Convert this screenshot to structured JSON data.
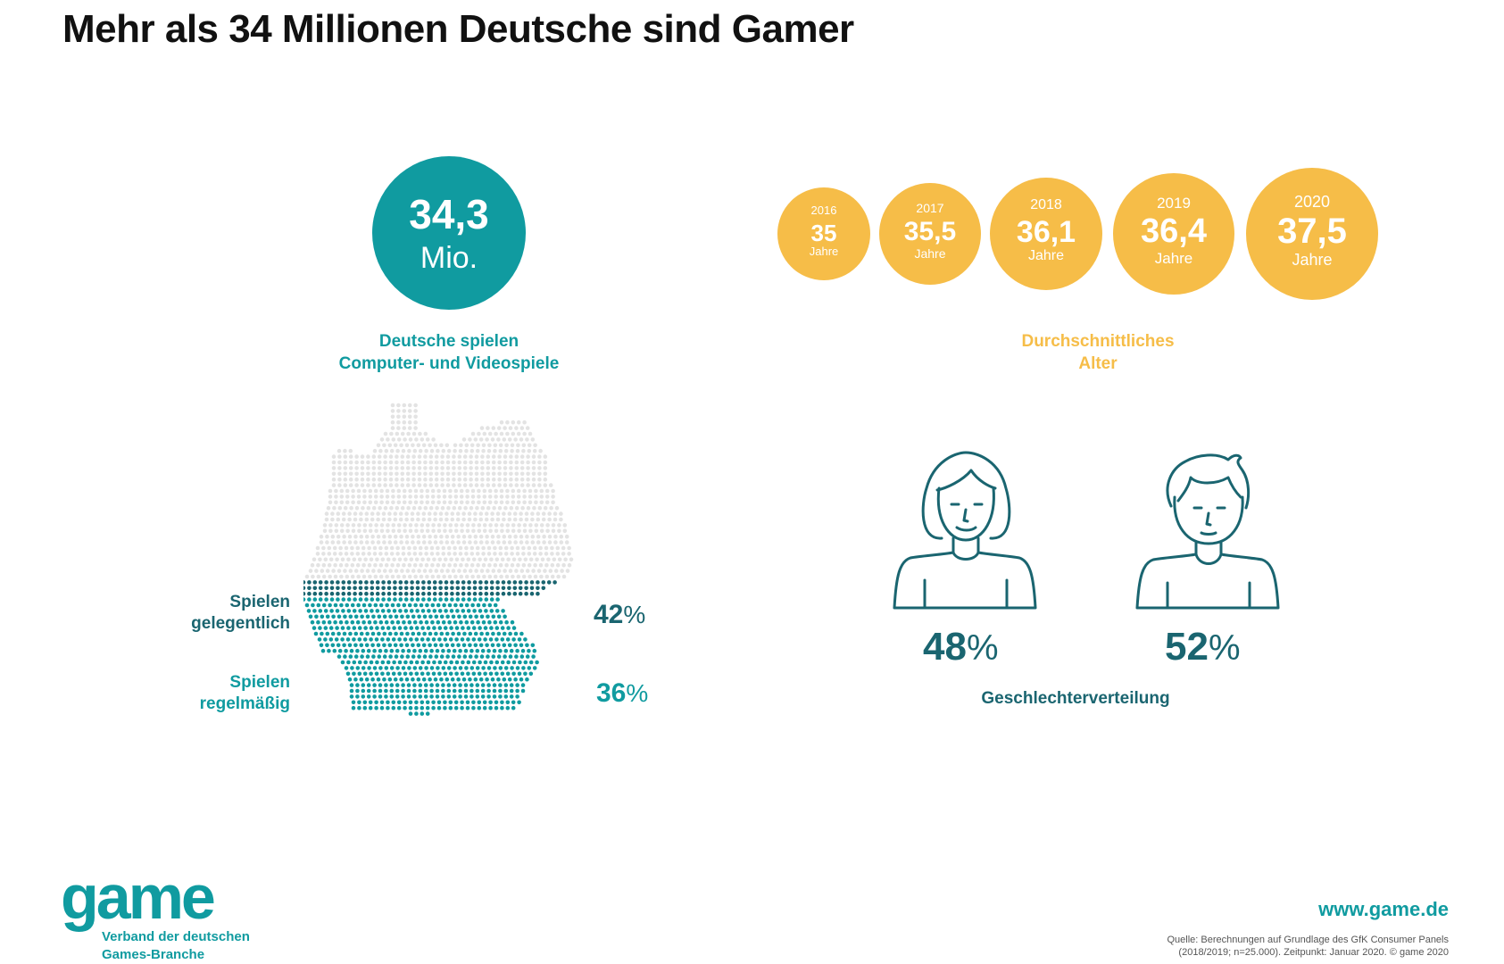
{
  "title": "Mehr als 34 Millionen Deutsche sind Gamer",
  "players": {
    "value": "34,3",
    "unit": "Mio.",
    "caption": [
      "Deutsche spielen",
      "Computer- und Videospiele"
    ]
  },
  "age": {
    "caption": [
      "Durchschnittliches",
      "Alter"
    ],
    "unit_label": "Jahre"
  },
  "frequency": {
    "occasional_label": [
      "Spielen",
      "gelegentlich"
    ],
    "occasional_value": "42",
    "regular_label": [
      "Spielen",
      "regelmäßig"
    ],
    "regular_value": "36",
    "unit": "%"
  },
  "gender": {
    "female_value": "48",
    "male_value": "52",
    "unit": "%",
    "caption": "Geschlechterverteilung"
  },
  "footer": {
    "logo": "game",
    "org": [
      "Verband der deutschen",
      "Games-Branche"
    ],
    "website": "www.game.de",
    "source": [
      "Quelle: Berechnungen auf Grundlage des GfK Consumer Panels",
      "(2018/2019; n=25.000). Zeitpunkt: Januar 2020. © game 2020"
    ]
  },
  "colors": {
    "teal": "#109ba0",
    "dark_teal": "#1a6570",
    "yellow": "#f6bd48",
    "light_gray": "#e3e3e3"
  },
  "icons": [
    "female-person-icon",
    "male-person-icon",
    "germany-map-dots"
  ],
  "chart_data": [
    {
      "type": "bar",
      "title": "Durchschnittliches Alter",
      "categories": [
        "2016",
        "2017",
        "2018",
        "2019",
        "2020"
      ],
      "labels": [
        "35",
        "35,5",
        "36,1",
        "36,4",
        "37,5"
      ],
      "values": [
        35,
        35.5,
        36.1,
        36.4,
        37.5
      ]
    },
    {
      "type": "pie",
      "title": "Geschlechterverteilung",
      "categories": [
        "Frauen",
        "Männer"
      ],
      "values": [
        48,
        52
      ]
    },
    {
      "type": "bar",
      "categories": [
        "Spielen gelegentlich",
        "Spielen regelmäßig"
      ],
      "values": [
        42,
        36
      ]
    }
  ]
}
